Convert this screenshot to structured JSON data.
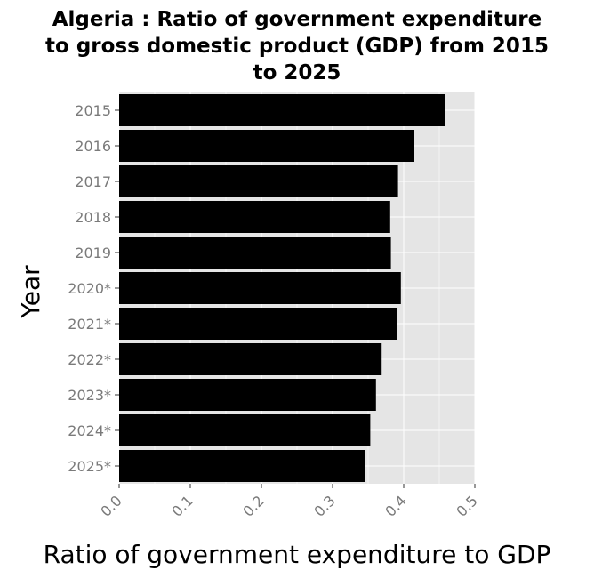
{
  "chart_data": {
    "type": "bar",
    "orientation": "horizontal",
    "title_lines": [
      "Algeria : Ratio of government expenditure",
      "to gross domestic product (GDP) from 2015",
      "to 2025"
    ],
    "xlabel": "Ratio of government expenditure to GDP",
    "ylabel": "Year",
    "categories": [
      "2015",
      "2016",
      "2017",
      "2018",
      "2019",
      "2020*",
      "2021*",
      "2022*",
      "2023*",
      "2024*",
      "2025*"
    ],
    "values": [
      0.458,
      0.415,
      0.392,
      0.381,
      0.382,
      0.396,
      0.391,
      0.369,
      0.361,
      0.353,
      0.346
    ],
    "xlim": [
      0,
      0.5
    ],
    "xticks": [
      "0.0",
      "0.1",
      "0.2",
      "0.3",
      "0.4",
      "0.5"
    ],
    "bar_color": "#000000",
    "panel_color": "#e5e5e5",
    "grid_color": "#ffffff",
    "grid": true
  }
}
